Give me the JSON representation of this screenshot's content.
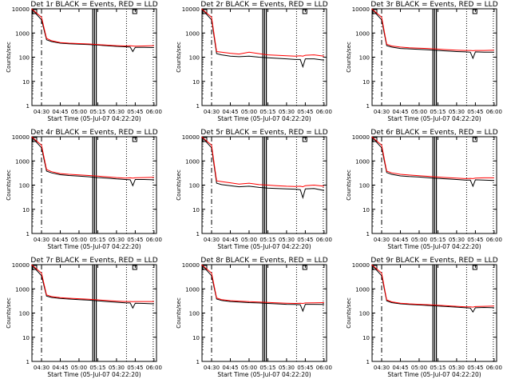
{
  "chart_data": [
    {
      "type": "line",
      "title": "Det 1r BLACK = Events, RED = LLD",
      "xlabel": "Start Time (05-Jul-07 04:22:20)",
      "ylabel": "Counts/sec",
      "ylog": true,
      "ylim": [
        1,
        10000
      ],
      "xlim": [
        "04:22:20",
        "06:02:00"
      ],
      "x_ticks": [
        "04:30",
        "04:45",
        "05:00",
        "05:15",
        "05:30",
        "05:45",
        "06:00"
      ],
      "y_ticks": [
        "1",
        "10",
        "100",
        "1000",
        "10000"
      ],
      "x": [
        "04:22",
        "04:30",
        "04:34",
        "04:38",
        "04:45",
        "04:52",
        "05:00",
        "05:08",
        "05:15",
        "05:22",
        "05:30",
        "05:37",
        "05:41",
        "05:43",
        "05:45",
        "05:52",
        "06:00"
      ],
      "series": [
        {
          "color": "#000000",
          "values": [
            10000,
            3500,
            520,
            440,
            380,
            360,
            345,
            330,
            315,
            300,
            280,
            270,
            260,
            170,
            255,
            255,
            250
          ]
        },
        {
          "color": "#ff0000",
          "values": [
            10000,
            4500,
            600,
            480,
            400,
            380,
            365,
            350,
            330,
            315,
            300,
            290,
            295,
            290,
            285,
            290,
            300
          ]
        }
      ]
    },
    {
      "type": "line",
      "title": "Det 2r BLACK = Events, RED = LLD",
      "xlabel": "Start Time (05-Jul-07 04:22:20)",
      "ylabel": "Counts/sec",
      "ylog": true,
      "ylim": [
        1,
        10000
      ],
      "xlim": [
        "04:22:20",
        "06:02:00"
      ],
      "x_ticks": [
        "04:30",
        "04:45",
        "05:00",
        "05:15",
        "05:30",
        "05:45",
        "06:00"
      ],
      "y_ticks": [
        "1",
        "10",
        "100",
        "1000",
        "10000"
      ],
      "x": [
        "04:22",
        "04:30",
        "04:34",
        "04:38",
        "04:45",
        "04:52",
        "05:00",
        "05:08",
        "05:15",
        "05:22",
        "05:30",
        "05:37",
        "05:41",
        "05:43",
        "05:45",
        "05:52",
        "06:00"
      ],
      "series": [
        {
          "color": "#000000",
          "values": [
            10000,
            3500,
            140,
            125,
            110,
            105,
            110,
            100,
            95,
            90,
            85,
            80,
            80,
            40,
            85,
            85,
            75
          ]
        },
        {
          "color": "#ff0000",
          "values": [
            10000,
            4500,
            170,
            160,
            145,
            135,
            160,
            140,
            125,
            120,
            115,
            110,
            115,
            110,
            120,
            125,
            110
          ]
        }
      ]
    },
    {
      "type": "line",
      "title": "Det 3r BLACK = Events, RED = LLD",
      "xlabel": "Start Time (05-Jul-07 04:22:20)",
      "ylabel": "Counts/sec",
      "ylog": true,
      "ylim": [
        1,
        10000
      ],
      "xlim": [
        "04:22:20",
        "06:02:00"
      ],
      "x_ticks": [
        "04:30",
        "04:45",
        "05:00",
        "05:15",
        "05:30",
        "05:45",
        "06:00"
      ],
      "y_ticks": [
        "1",
        "10",
        "100",
        "1000",
        "10000"
      ],
      "x": [
        "04:22",
        "04:30",
        "04:34",
        "04:38",
        "04:45",
        "04:52",
        "05:00",
        "05:08",
        "05:15",
        "05:22",
        "05:30",
        "05:37",
        "05:41",
        "05:43",
        "05:45",
        "05:52",
        "06:00"
      ],
      "series": [
        {
          "color": "#000000",
          "values": [
            10000,
            3500,
            300,
            260,
            230,
            220,
            210,
            200,
            190,
            180,
            170,
            165,
            160,
            90,
            165,
            160,
            160
          ]
        },
        {
          "color": "#ff0000",
          "values": [
            10000,
            4500,
            340,
            290,
            260,
            245,
            235,
            225,
            215,
            205,
            195,
            190,
            190,
            185,
            190,
            190,
            195
          ]
        }
      ]
    },
    {
      "type": "line",
      "title": "Det 4r BLACK = Events, RED = LLD",
      "xlabel": "Start Time (05-Jul-07 04:22:20)",
      "ylabel": "Counts/sec",
      "ylog": true,
      "ylim": [
        1,
        10000
      ],
      "xlim": [
        "04:22:20",
        "06:02:00"
      ],
      "x_ticks": [
        "04:30",
        "04:45",
        "05:00",
        "05:15",
        "05:30",
        "05:45",
        "06:00"
      ],
      "y_ticks": [
        "1",
        "10",
        "100",
        "1000",
        "10000"
      ],
      "x": [
        "04:22",
        "04:30",
        "04:34",
        "04:38",
        "04:45",
        "04:52",
        "05:00",
        "05:08",
        "05:15",
        "05:22",
        "05:30",
        "05:37",
        "05:41",
        "05:43",
        "05:45",
        "05:52",
        "06:00"
      ],
      "series": [
        {
          "color": "#000000",
          "values": [
            10000,
            3500,
            380,
            320,
            270,
            250,
            235,
            220,
            205,
            195,
            180,
            170,
            165,
            95,
            170,
            170,
            165
          ]
        },
        {
          "color": "#ff0000",
          "values": [
            10000,
            4500,
            440,
            360,
            300,
            280,
            265,
            250,
            235,
            220,
            205,
            195,
            200,
            195,
            200,
            205,
            210
          ]
        }
      ]
    },
    {
      "type": "line",
      "title": "Det 5r BLACK = Events, RED = LLD",
      "xlabel": "Start Time (05-Jul-07 04:22:20)",
      "ylabel": "Counts/sec",
      "ylog": true,
      "ylim": [
        1,
        10000
      ],
      "xlim": [
        "04:22:20",
        "06:02:00"
      ],
      "x_ticks": [
        "04:30",
        "04:45",
        "05:00",
        "05:15",
        "05:30",
        "05:45",
        "06:00"
      ],
      "y_ticks": [
        "1",
        "10",
        "100",
        "1000",
        "10000"
      ],
      "x": [
        "04:22",
        "04:30",
        "04:34",
        "04:38",
        "04:45",
        "04:52",
        "05:00",
        "05:08",
        "05:15",
        "05:22",
        "05:30",
        "05:37",
        "05:41",
        "05:43",
        "05:45",
        "05:52",
        "06:00"
      ],
      "series": [
        {
          "color": "#000000",
          "values": [
            10000,
            3500,
            120,
            105,
            95,
            85,
            90,
            80,
            75,
            72,
            70,
            68,
            65,
            30,
            70,
            72,
            60
          ]
        },
        {
          "color": "#ff0000",
          "values": [
            10000,
            4500,
            150,
            140,
            125,
            110,
            120,
            105,
            100,
            95,
            90,
            88,
            90,
            85,
            95,
            100,
            90
          ]
        }
      ]
    },
    {
      "type": "line",
      "title": "Det 6r BLACK = Events, RED = LLD",
      "xlabel": "Start Time (05-Jul-07 04:22:20)",
      "ylabel": "Counts/sec",
      "ylog": true,
      "ylim": [
        1,
        10000
      ],
      "xlim": [
        "04:22:20",
        "06:02:00"
      ],
      "x_ticks": [
        "04:30",
        "04:45",
        "05:00",
        "05:15",
        "05:30",
        "05:45",
        "06:00"
      ],
      "y_ticks": [
        "1",
        "10",
        "100",
        "1000",
        "10000"
      ],
      "x": [
        "04:22",
        "04:30",
        "04:34",
        "04:38",
        "04:45",
        "04:52",
        "05:00",
        "05:08",
        "05:15",
        "05:22",
        "05:30",
        "05:37",
        "05:41",
        "05:43",
        "05:45",
        "05:52",
        "06:00"
      ],
      "series": [
        {
          "color": "#000000",
          "values": [
            10000,
            3500,
            330,
            280,
            240,
            225,
            215,
            200,
            190,
            180,
            170,
            160,
            160,
            90,
            165,
            160,
            155
          ]
        },
        {
          "color": "#ff0000",
          "values": [
            10000,
            4500,
            380,
            320,
            280,
            260,
            245,
            230,
            215,
            205,
            195,
            185,
            190,
            185,
            195,
            200,
            200
          ]
        }
      ]
    },
    {
      "type": "line",
      "title": "Det 7r BLACK = Events, RED = LLD",
      "xlabel": "Start Time (05-Jul-07 04:22:20)",
      "ylabel": "Counts/sec",
      "ylog": true,
      "ylim": [
        1,
        10000
      ],
      "xlim": [
        "04:22:20",
        "06:02:00"
      ],
      "x_ticks": [
        "04:30",
        "04:45",
        "05:00",
        "05:15",
        "05:30",
        "05:45",
        "06:00"
      ],
      "y_ticks": [
        "1",
        "10",
        "100",
        "1000",
        "10000"
      ],
      "x": [
        "04:22",
        "04:30",
        "04:34",
        "04:38",
        "04:45",
        "04:52",
        "05:00",
        "05:08",
        "05:15",
        "05:22",
        "05:30",
        "05:37",
        "05:41",
        "05:43",
        "05:45",
        "05:52",
        "06:00"
      ],
      "series": [
        {
          "color": "#000000",
          "values": [
            10000,
            3500,
            500,
            440,
            400,
            380,
            360,
            340,
            320,
            300,
            280,
            265,
            260,
            160,
            255,
            250,
            240
          ]
        },
        {
          "color": "#ff0000",
          "values": [
            10000,
            4500,
            560,
            480,
            430,
            410,
            390,
            370,
            350,
            330,
            310,
            300,
            300,
            295,
            300,
            300,
            300
          ]
        }
      ]
    },
    {
      "type": "line",
      "title": "Det 8r BLACK = Events, RED = LLD",
      "xlabel": "Start Time (05-Jul-07 04:22:20)",
      "ylabel": "Counts/sec",
      "ylog": true,
      "ylim": [
        1,
        10000
      ],
      "xlim": [
        "04:22:20",
        "06:02:00"
      ],
      "x_ticks": [
        "04:30",
        "04:45",
        "05:00",
        "05:15",
        "05:30",
        "05:45",
        "06:00"
      ],
      "y_ticks": [
        "1",
        "10",
        "100",
        "1000",
        "10000"
      ],
      "x": [
        "04:22",
        "04:30",
        "04:34",
        "04:38",
        "04:45",
        "04:52",
        "05:00",
        "05:08",
        "05:15",
        "05:22",
        "05:30",
        "05:37",
        "05:41",
        "05:43",
        "05:45",
        "05:52",
        "06:00"
      ],
      "series": [
        {
          "color": "#000000",
          "values": [
            10000,
            3500,
            380,
            330,
            300,
            285,
            270,
            260,
            250,
            240,
            230,
            225,
            220,
            120,
            230,
            230,
            225
          ]
        },
        {
          "color": "#ff0000",
          "values": [
            10000,
            4500,
            420,
            360,
            325,
            310,
            295,
            285,
            275,
            265,
            255,
            250,
            255,
            250,
            260,
            265,
            270
          ]
        }
      ]
    },
    {
      "type": "line",
      "title": "Det 9r BLACK = Events, RED = LLD",
      "xlabel": "Start Time (05-Jul-07 04:22:20)",
      "ylabel": "Counts/sec",
      "ylog": true,
      "ylim": [
        1,
        10000
      ],
      "xlim": [
        "04:22:20",
        "06:02:00"
      ],
      "x_ticks": [
        "04:30",
        "04:45",
        "05:00",
        "05:15",
        "05:30",
        "05:45",
        "06:00"
      ],
      "y_ticks": [
        "1",
        "10",
        "100",
        "1000",
        "10000"
      ],
      "x": [
        "04:22",
        "04:30",
        "04:34",
        "04:38",
        "04:45",
        "04:52",
        "05:00",
        "05:08",
        "05:15",
        "05:22",
        "05:30",
        "05:37",
        "05:41",
        "05:43",
        "05:45",
        "05:52",
        "06:00"
      ],
      "series": [
        {
          "color": "#000000",
          "values": [
            10000,
            3500,
            320,
            270,
            240,
            225,
            215,
            205,
            195,
            185,
            175,
            165,
            160,
            110,
            165,
            170,
            165
          ]
        },
        {
          "color": "#ff0000",
          "values": [
            10000,
            4500,
            350,
            290,
            255,
            240,
            230,
            220,
            210,
            200,
            190,
            180,
            180,
            175,
            185,
            190,
            195
          ]
        }
      ]
    }
  ]
}
